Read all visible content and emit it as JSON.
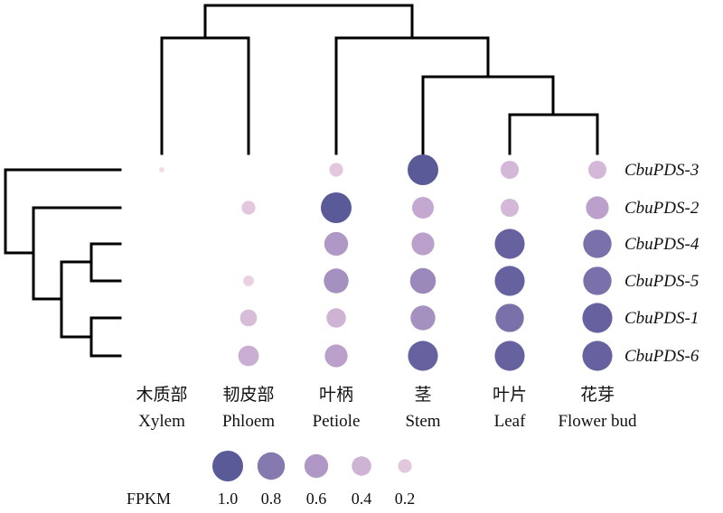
{
  "chart_data": {
    "type": "bubble-heatmap",
    "metric": "FPKM",
    "genes": [
      "CbuPDS-3",
      "CbuPDS-2",
      "CbuPDS-4",
      "CbuPDS-5",
      "CbuPDS-1",
      "CbuPDS-6"
    ],
    "tissues": [
      {
        "cn": "木质部",
        "en": "Xylem"
      },
      {
        "cn": "韧皮部",
        "en": "Phloem"
      },
      {
        "cn": "叶柄",
        "en": "Petiole"
      },
      {
        "cn": "茎",
        "en": "Stem"
      },
      {
        "cn": "叶片",
        "en": "Leaf"
      },
      {
        "cn": "花芽",
        "en": "Flower bud"
      }
    ],
    "values": [
      [
        0.02,
        0.0,
        0.2,
        1.0,
        0.35,
        0.35
      ],
      [
        0.0,
        0.2,
        1.0,
        0.5,
        0.35,
        0.55
      ],
      [
        0.0,
        0.0,
        0.6,
        0.55,
        0.95,
        0.85
      ],
      [
        0.0,
        0.12,
        0.65,
        0.7,
        0.95,
        0.85
      ],
      [
        0.0,
        0.3,
        0.4,
        0.65,
        0.85,
        0.95
      ],
      [
        0.0,
        0.45,
        0.55,
        0.95,
        0.95,
        0.95
      ]
    ],
    "legend": {
      "label": "FPKM",
      "levels": [
        1.0,
        0.8,
        0.6,
        0.4,
        0.2
      ],
      "labels": [
        "1.0",
        "0.8",
        "0.6",
        "0.4",
        "0.2"
      ]
    },
    "color_low": "#f7dde6",
    "color_high": "#5b5a99",
    "row_dendrogram": "((CbuPDS-3),((CbuPDS-2),((CbuPDS-4,CbuPDS-5),(CbuPDS-1,CbuPDS-6))))",
    "column_dendrogram": "((Xylem,Phloem),(Petiole,(Stem,(Leaf,Flower bud))))"
  }
}
